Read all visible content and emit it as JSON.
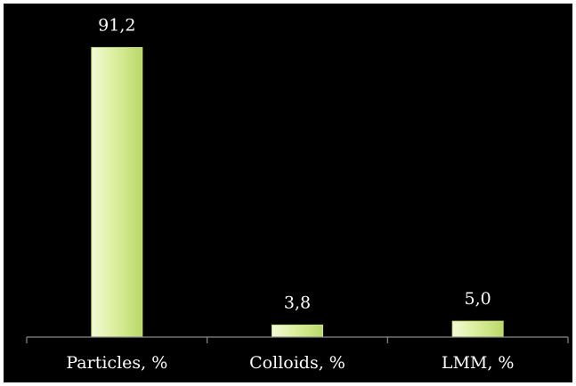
{
  "chart_data": {
    "type": "bar",
    "categories": [
      "Particles, %",
      "Colloids, %",
      "LMM, %"
    ],
    "values": [
      91.2,
      3.8,
      5.0
    ],
    "data_labels": [
      "91,2",
      "3,8",
      "5,0"
    ],
    "title": "",
    "xlabel": "",
    "ylabel": "",
    "ylim": [
      0,
      100
    ],
    "grid": false,
    "legend": "none",
    "colors": {
      "background": "#000000",
      "bar_fill_light": "#f4f9d8",
      "bar_fill_mid": "#dcef9e",
      "bar_fill_dark": "#b9d96a",
      "bar_edge": "#c7e27a",
      "axis": "#8a8a8a",
      "text": "#ffffff"
    }
  }
}
